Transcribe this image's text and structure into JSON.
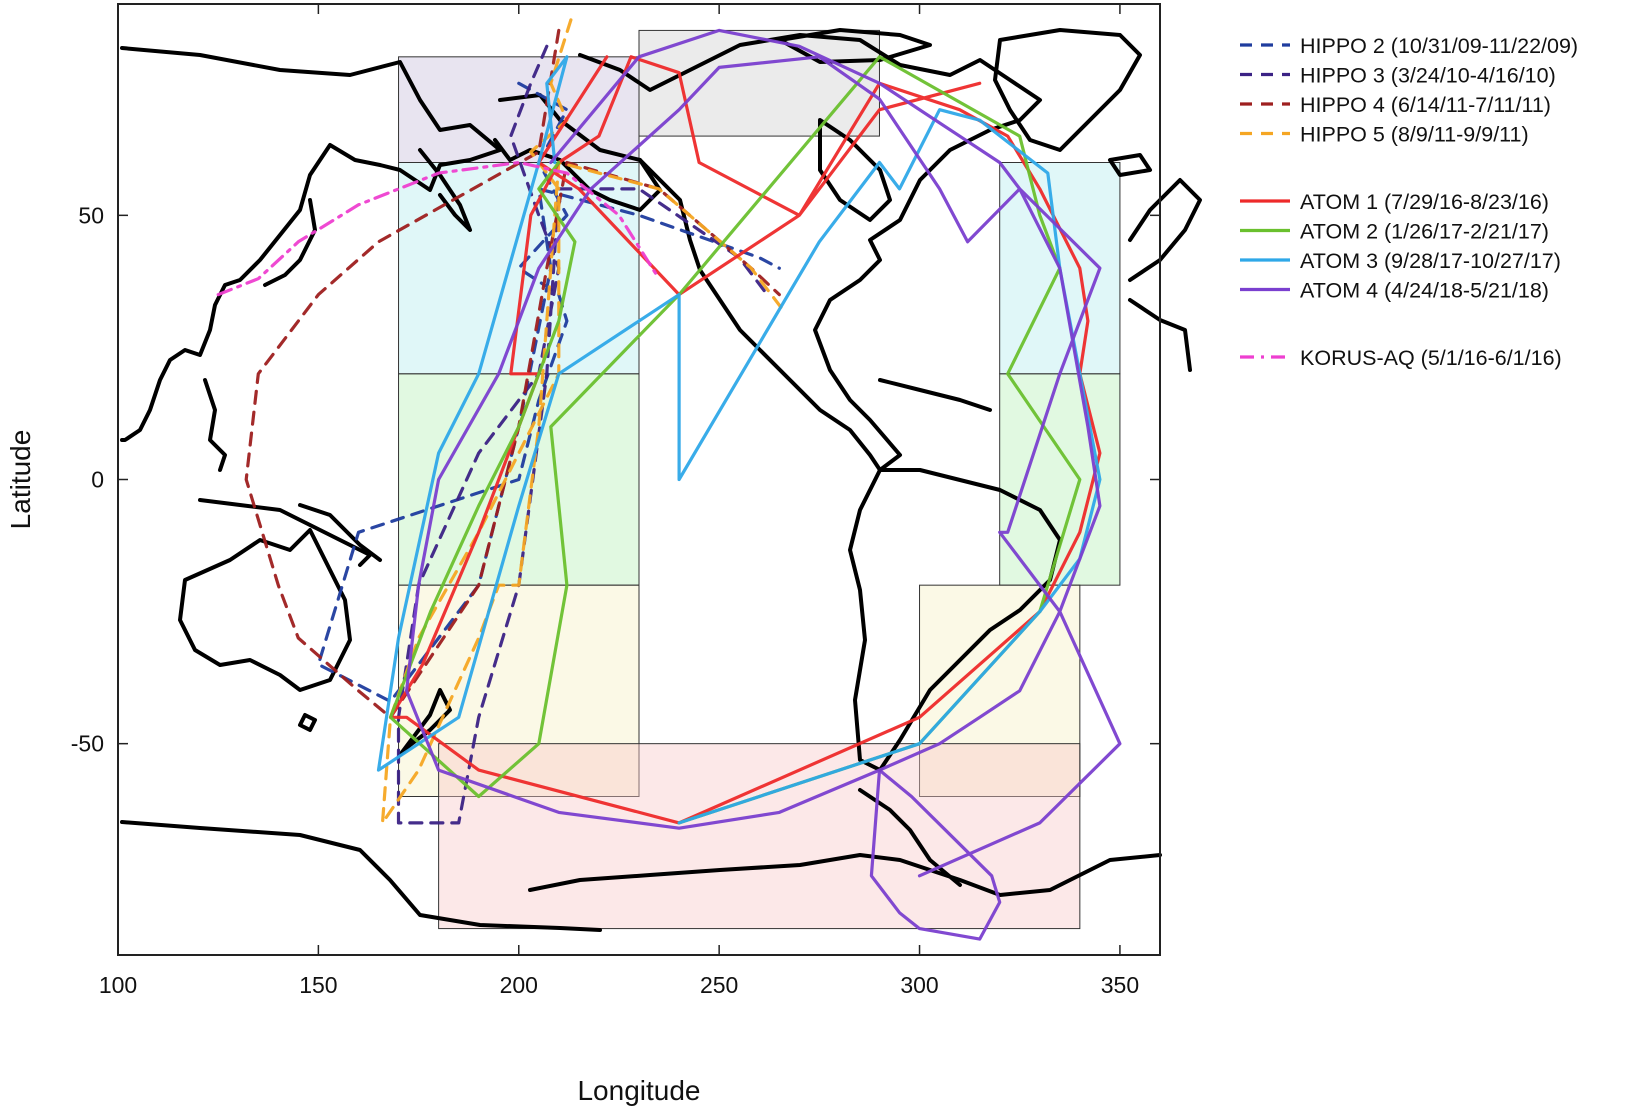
{
  "chart_data": {
    "type": "map",
    "xlabel": "Longitude",
    "ylabel": "Latitude",
    "xlim": [
      100,
      360
    ],
    "ylim": [
      -90,
      90
    ],
    "xticks": [
      100,
      150,
      200,
      250,
      300,
      350
    ],
    "yticks": [
      50,
      0,
      -50
    ],
    "regions": [
      {
        "lon": [
          170,
          230
        ],
        "lat": [
          60,
          80
        ],
        "color": "#c9bedb"
      },
      {
        "lon": [
          230,
          290
        ],
        "lat": [
          65,
          85
        ],
        "color": "#d0d0d0"
      },
      {
        "lon": [
          170,
          230
        ],
        "lat": [
          20,
          60
        ],
        "color": "#b5ecef"
      },
      {
        "lon": [
          320,
          350
        ],
        "lat": [
          20,
          60
        ],
        "color": "#b5ecef"
      },
      {
        "lon": [
          170,
          230
        ],
        "lat": [
          -20,
          20
        ],
        "color": "#b8f0b8"
      },
      {
        "lon": [
          320,
          350
        ],
        "lat": [
          -20,
          20
        ],
        "color": "#b8f0b8"
      },
      {
        "lon": [
          170,
          230
        ],
        "lat": [
          -60,
          -20
        ],
        "color": "#f6f0c4"
      },
      {
        "lon": [
          300,
          340
        ],
        "lat": [
          -60,
          -20
        ],
        "color": "#f6f0c4"
      },
      {
        "lon": [
          180,
          340
        ],
        "lat": [
          -85,
          -50
        ],
        "color": "#f9c8c8"
      }
    ],
    "series": [
      {
        "name": "HIPPO 2 (10/31/09-11/22/09)",
        "color": "#1f3c9e",
        "dash": "dash",
        "lon": [
          200,
          212,
          205,
          212,
          200,
          210,
          212,
          205,
          200,
          160,
          150,
          168,
          190,
          200,
          208,
          205,
          230,
          260,
          265
        ],
        "lat": [
          75,
          70,
          60,
          50,
          40,
          35,
          30,
          15,
          0,
          -10,
          -35,
          -42,
          -20,
          10,
          40,
          55,
          50,
          42,
          40
        ]
      },
      {
        "name": "HIPPO 3 (3/24/10-4/16/10)",
        "color": "#3b2285",
        "dash": "dash",
        "lon": [
          207,
          203,
          198,
          205,
          210,
          205,
          190,
          175,
          170,
          170,
          185,
          190,
          200,
          207,
          210,
          230,
          255,
          262
        ],
        "lat": [
          82,
          75,
          65,
          50,
          40,
          20,
          5,
          -20,
          -45,
          -65,
          -65,
          -45,
          -20,
          20,
          55,
          55,
          42,
          35
        ]
      },
      {
        "name": "HIPPO 4 (6/14/11-7/11/11)",
        "color": "#9e1f1f",
        "dash": "dash",
        "lon": [
          210,
          205,
          165,
          150,
          135,
          132,
          140,
          145,
          160,
          168,
          190,
          200,
          207,
          212,
          235,
          258,
          265
        ],
        "lat": [
          85,
          62,
          45,
          35,
          20,
          0,
          -20,
          -30,
          -40,
          -45,
          -20,
          10,
          40,
          60,
          55,
          40,
          35
        ]
      },
      {
        "name": "HIPPO 5 (8/9/11-9/9/11)",
        "color": "#f5a623",
        "dash": "dash",
        "lon": [
          213,
          208,
          212,
          203,
          210,
          210,
          200,
          190,
          175,
          168,
          166,
          175,
          190,
          195,
          200,
          205,
          210,
          235,
          258,
          266
        ],
        "lat": [
          87,
          75,
          68,
          62,
          55,
          20,
          5,
          -10,
          -30,
          -45,
          -65,
          -55,
          -30,
          -20,
          -20,
          10,
          60,
          55,
          40,
          32
        ]
      },
      {
        "name": "ATOM 1 (7/29/16-8/23/16)",
        "color": "#ee2a2a",
        "dash": "solid",
        "lon": [
          222,
          205,
          215,
          240,
          270,
          290,
          310,
          322,
          330,
          340,
          342,
          340,
          345,
          340,
          330,
          300,
          240,
          190,
          172,
          168,
          176,
          190,
          200,
          205,
          198,
          203,
          210,
          220,
          228,
          240,
          245,
          270,
          290,
          315
        ],
        "lat": [
          80,
          60,
          55,
          35,
          50,
          75,
          70,
          65,
          55,
          40,
          30,
          20,
          5,
          -10,
          -25,
          -45,
          -65,
          -55,
          -45,
          -45,
          -35,
          -10,
          10,
          20,
          20,
          50,
          60,
          65,
          80,
          77,
          60,
          50,
          70,
          75
        ]
      },
      {
        "name": "ATOM 2 (1/26/17-2/21/17)",
        "color": "#6ac02e",
        "dash": "solid",
        "lon": [
          210,
          205,
          214,
          210,
          200,
          190,
          178,
          168,
          190,
          205,
          212,
          208,
          240,
          290,
          325,
          330,
          335,
          322,
          340,
          330,
          300,
          240
        ],
        "lat": [
          60,
          55,
          45,
          30,
          10,
          -5,
          -25,
          -45,
          -60,
          -50,
          -20,
          10,
          35,
          80,
          65,
          50,
          40,
          20,
          0,
          -25,
          -50,
          -65
        ]
      },
      {
        "name": "ATOM 3 (9/28/17-10/27/17)",
        "color": "#2ea8e8",
        "dash": "solid",
        "lon": [
          209,
          207,
          212,
          205,
          190,
          180,
          170,
          165,
          175,
          185,
          200,
          210,
          240,
          240,
          240,
          240,
          275,
          290,
          295,
          305,
          315,
          332,
          335,
          345,
          340,
          330,
          300,
          240
        ],
        "lat": [
          60,
          75,
          80,
          60,
          20,
          5,
          -30,
          -55,
          -50,
          -45,
          -5,
          20,
          35,
          30,
          10,
          0,
          45,
          60,
          55,
          70,
          68,
          58,
          40,
          0,
          -15,
          -25,
          -50,
          -65
        ]
      },
      {
        "name": "ATOM 4 (4/24/18-5/21/18)",
        "color": "#7a3fcf",
        "dash": "solid",
        "lon": [
          208,
          230,
          250,
          270,
          290,
          310,
          320,
          325,
          335,
          342,
          345,
          335,
          325,
          315,
          305,
          290,
          288,
          295,
          300,
          315,
          320,
          318,
          298,
          290,
          265,
          240,
          210,
          180,
          172,
          175,
          180,
          195,
          205,
          218,
          240,
          250,
          275,
          290,
          305,
          312,
          325,
          345,
          335,
          322,
          320,
          335,
          350,
          330,
          300
        ],
        "lat": [
          60,
          80,
          85,
          82,
          75,
          65,
          60,
          55,
          40,
          10,
          -5,
          -25,
          -40,
          -45,
          -50,
          -55,
          -75,
          -82,
          -85,
          -87,
          -80,
          -75,
          -60,
          -55,
          -63,
          -66,
          -63,
          -55,
          -40,
          -20,
          0,
          20,
          40,
          55,
          70,
          78,
          80,
          72,
          55,
          45,
          55,
          40,
          20,
          -10,
          -10,
          -25,
          -50,
          -65,
          -75
        ]
      },
      {
        "name": "KORUS-AQ (5/1/16-6/1/16)",
        "color": "#ee3fd0",
        "dash": "dashdot",
        "lon": [
          125,
          135,
          145,
          160,
          180,
          200,
          212,
          225,
          235
        ],
        "lat": [
          35,
          38,
          45,
          52,
          58,
          60,
          58,
          50,
          38
        ]
      }
    ]
  },
  "legend": [
    {
      "label": "HIPPO 2 (10/31/09-11/22/09)",
      "color": "#1f3c9e",
      "dash": "dash"
    },
    {
      "label": "HIPPO 3 (3/24/10-4/16/10)",
      "color": "#3b2285",
      "dash": "dash"
    },
    {
      "label": "HIPPO 4 (6/14/11-7/11/11)",
      "color": "#9e1f1f",
      "dash": "dash"
    },
    {
      "label": "HIPPO 5 (8/9/11-9/9/11)",
      "color": "#f5a623",
      "dash": "dash"
    },
    {
      "label": "ATOM 1 (7/29/16-8/23/16)",
      "color": "#ee2a2a",
      "dash": "solid"
    },
    {
      "label": "ATOM 2 (1/26/17-2/21/17)",
      "color": "#6ac02e",
      "dash": "solid"
    },
    {
      "label": "ATOM 3 (9/28/17-10/27/17)",
      "color": "#2ea8e8",
      "dash": "solid"
    },
    {
      "label": "ATOM 4 (4/24/18-5/21/18)",
      "color": "#7a3fcf",
      "dash": "solid"
    },
    {
      "label": "KORUS-AQ (5/1/16-6/1/16)",
      "color": "#ee3fd0",
      "dash": "dashdot"
    }
  ]
}
